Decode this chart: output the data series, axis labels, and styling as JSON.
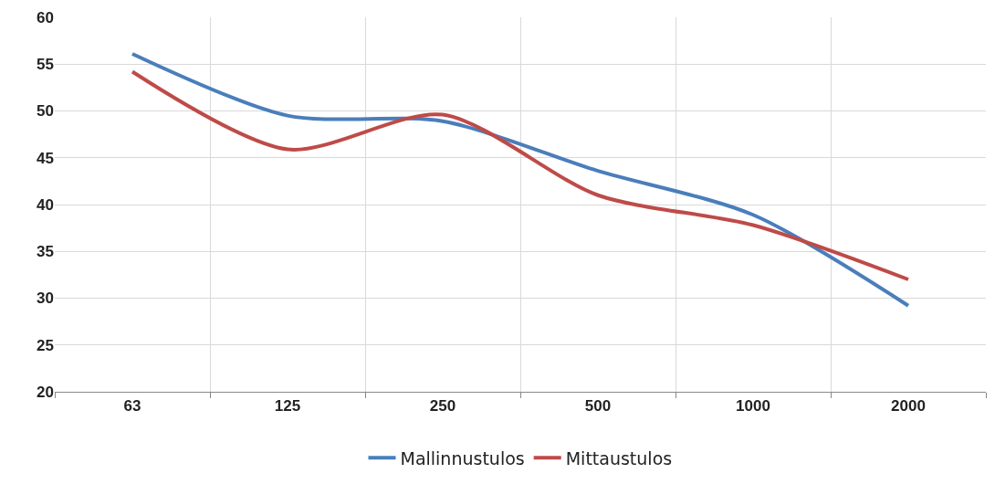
{
  "chart_data": {
    "type": "line",
    "categories": [
      "63",
      "125",
      "250",
      "500",
      "1000",
      "2000"
    ],
    "series": [
      {
        "name": "Mallinnustulos",
        "color": "#4a7ebb",
        "values": [
          56.1,
          49.5,
          48.9,
          43.6,
          38.9,
          29.2
        ]
      },
      {
        "name": "Mittaustulos",
        "color": "#be4b48",
        "values": [
          54.2,
          45.9,
          49.6,
          41.0,
          37.8,
          32.0
        ]
      }
    ],
    "ylim": [
      20,
      60
    ],
    "yticks": [
      20,
      25,
      30,
      35,
      40,
      45,
      50,
      55,
      60
    ],
    "grid": true,
    "legend": "bottom",
    "marker": "none",
    "line_style": "solid"
  }
}
